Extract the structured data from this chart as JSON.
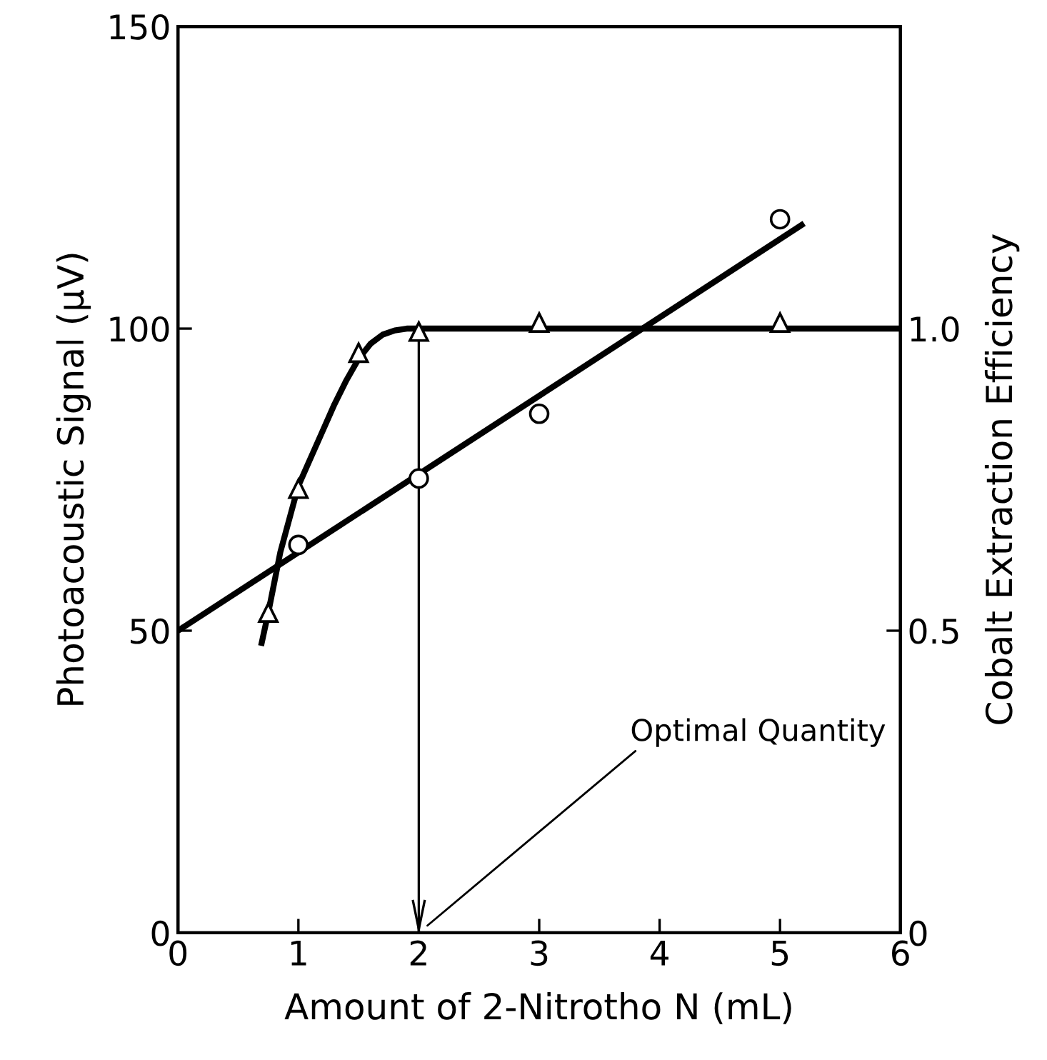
{
  "chart_data": {
    "type": "scatter",
    "xlabel": "Amount of 2-Nitrotho N (mL)",
    "ylabel": "Photoacoustic Signal (μV)",
    "y2label": "Cobalt Extraction Efficiency",
    "xlim": [
      0,
      6
    ],
    "xticks": [
      0,
      1,
      2,
      3,
      4,
      5,
      6
    ],
    "ylim": [
      0,
      150
    ],
    "yticks": [
      0,
      50,
      100,
      150
    ],
    "y2lim": [
      0,
      1.5
    ],
    "y2ticks": [
      0,
      0.5,
      {
        "value": 1.0,
        "label": "1.0"
      }
    ],
    "grid": false,
    "ref_lines": [
      {
        "axis": "x",
        "value": 2,
        "color": "#000000",
        "line_style": "solid"
      }
    ],
    "series": [
      {
        "marker": "circle",
        "color": "#000000",
        "x": [
          1,
          2,
          3,
          5
        ],
        "values": [
          64.2,
          75.2,
          85.9,
          118.1
        ]
      },
      {
        "type": "line",
        "marker": "none",
        "line_style": "solid",
        "color": "#000000",
        "x": [
          0,
          5.2
        ],
        "values": [
          50,
          117.4
        ]
      },
      {
        "marker": "triangle",
        "axis": "y2",
        "color": "#000000",
        "x": [
          0.75,
          1,
          1.5,
          2,
          3,
          5
        ],
        "values": [
          0.53,
          0.735,
          0.96,
          0.995,
          1.01,
          1.01
        ]
      },
      {
        "type": "line",
        "marker": "none",
        "line_style": "solid",
        "axis": "y2",
        "color": "#000000",
        "x": [
          0.69,
          0.75,
          0.85,
          1.0,
          1.1,
          1.2,
          1.3,
          1.4,
          1.5,
          1.6,
          1.7,
          1.8,
          1.9,
          2.0,
          6.0
        ],
        "values": [
          0.475,
          0.53,
          0.63,
          0.74,
          0.785,
          0.83,
          0.875,
          0.915,
          0.95,
          0.975,
          0.99,
          0.997,
          1.0,
          1.0,
          1.0
        ]
      }
    ],
    "annotations": [
      "Optimal Quantity"
    ]
  }
}
